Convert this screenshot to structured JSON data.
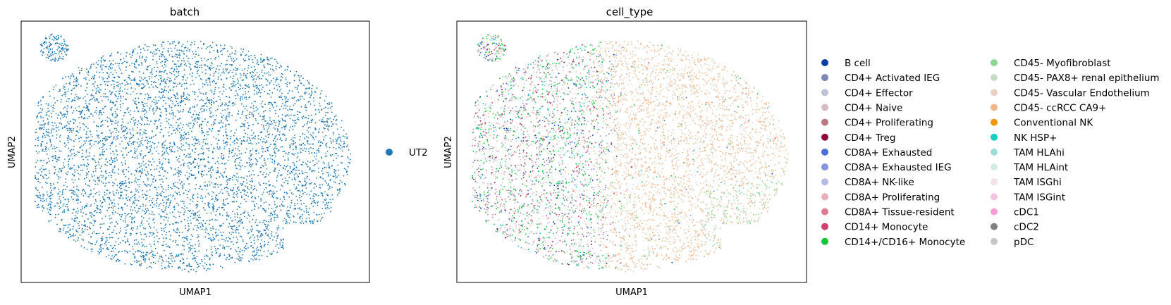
{
  "chart_data": [
    {
      "type": "scatter",
      "title": "batch",
      "xlabel": "UMAP1",
      "ylabel": "UMAP2",
      "ticks_visible": false,
      "grid": false,
      "legend_placement": "right",
      "legend": [
        {
          "name": "UT2",
          "color": "#1f77b4"
        }
      ]
    },
    {
      "type": "scatter",
      "title": "cell_type",
      "xlabel": "UMAP1",
      "ylabel": "UMAP2",
      "ticks_visible": false,
      "grid": false,
      "legend_placement": "right",
      "legend": [
        {
          "name": "B cell",
          "color": "#023fa5"
        },
        {
          "name": "CD4+ Activated IEG",
          "color": "#7d87b9"
        },
        {
          "name": "CD4+ Effector",
          "color": "#bec1d4"
        },
        {
          "name": "CD4+ Naive",
          "color": "#d6bcc0"
        },
        {
          "name": "CD4+ Proliferating",
          "color": "#bb7784"
        },
        {
          "name": "CD4+ Treg",
          "color": "#8e063b"
        },
        {
          "name": "CD8A+ Exhausted",
          "color": "#4a6fe3"
        },
        {
          "name": "CD8A+ Exhausted IEG",
          "color": "#8595e1"
        },
        {
          "name": "CD8A+ NK-like",
          "color": "#b5bbe3"
        },
        {
          "name": "CD8A+ Proliferating",
          "color": "#e6afb9"
        },
        {
          "name": "CD8A+ Tissue-resident",
          "color": "#e07b91"
        },
        {
          "name": "CD14+ Monocyte",
          "color": "#d33f6a"
        },
        {
          "name": "CD14+/CD16+ Monocyte",
          "color": "#11c638"
        },
        {
          "name": "CD45- Myofibroblast",
          "color": "#8dd593"
        },
        {
          "name": "CD45- PAX8+ renal epithelium",
          "color": "#c6dec7"
        },
        {
          "name": "CD45- Vascular Endothelium",
          "color": "#ead3c6"
        },
        {
          "name": "CD45- ccRCC CA9+",
          "color": "#f0b98d"
        },
        {
          "name": "Conventional NK",
          "color": "#ef9708"
        },
        {
          "name": "NK HSP+",
          "color": "#0fcfc0"
        },
        {
          "name": "TAM HLAhi",
          "color": "#9cded6"
        },
        {
          "name": "TAM HLAint",
          "color": "#d5eae7"
        },
        {
          "name": "TAM ISGhi",
          "color": "#f3e1eb"
        },
        {
          "name": "TAM ISGint",
          "color": "#f6c4e1"
        },
        {
          "name": "cDC1",
          "color": "#f79cd4"
        },
        {
          "name": "cDC2",
          "color": "#7f7f7f"
        },
        {
          "name": "pDC",
          "color": "#c7c7c7"
        }
      ]
    }
  ]
}
